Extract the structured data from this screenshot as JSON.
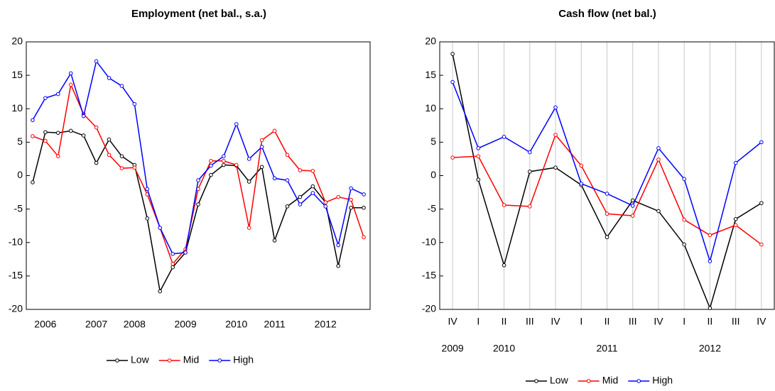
{
  "chart_data": [
    {
      "type": "line",
      "title": "Employment (net bal., s.a.)",
      "categories": [
        null,
        "2006",
        null,
        null,
        null,
        "2007",
        null,
        null,
        "2008",
        null,
        null,
        null,
        "2009",
        null,
        null,
        null,
        "2010",
        null,
        null,
        "2011",
        null,
        null,
        null,
        "2012",
        null,
        null,
        null
      ],
      "series": [
        {
          "name": "Low",
          "color": "#000000",
          "values": [
            -1,
            6.5,
            6.4,
            6.7,
            6,
            1.9,
            5.4,
            2.9,
            1.6,
            -6.4,
            -17.3,
            -13.7,
            -11.5,
            -4.3,
            0.1,
            1.6,
            1.5,
            -0.9,
            1.3,
            -9.7,
            -4.6,
            -3.2,
            -1.6,
            -4,
            -13.5,
            -4.8,
            -4.8
          ]
        },
        {
          "name": "Mid",
          "color": "#ff0000",
          "values": [
            5.9,
            5.2,
            2.9,
            13.6,
            9.2,
            7.2,
            3.1,
            1.1,
            1.2,
            -2.8,
            -7.8,
            -13.2,
            -11,
            -2,
            2.2,
            2.2,
            1.6,
            -7.8,
            5.3,
            6.7,
            3.1,
            0.8,
            0.7,
            -4,
            -3.2,
            -3.6,
            -9.2
          ]
        },
        {
          "name": "High",
          "color": "#0000ff",
          "values": [
            8.3,
            11.6,
            12.2,
            15.3,
            8.9,
            17.1,
            14.6,
            13.4,
            10.7,
            -2,
            -7.8,
            -11.7,
            -11.5,
            -0.7,
            1.5,
            2.9,
            7.7,
            2.5,
            4.3,
            -0.4,
            -0.7,
            -4.3,
            -2.6,
            -4.6,
            -10.4,
            -1.9,
            -2.8
          ]
        }
      ],
      "ylim": [
        -20,
        20
      ],
      "yticks": [
        -20,
        -15,
        -10,
        -5,
        0,
        5,
        10,
        15,
        20
      ],
      "grid": false,
      "legend": "bottom"
    },
    {
      "type": "line",
      "title": "Cash flow (net bal.)",
      "categories": [
        "IV",
        "I",
        "II",
        "III",
        "IV",
        "I",
        "II",
        "III",
        "IV",
        "I",
        "II",
        "III",
        "IV"
      ],
      "x_group_labels": [
        "2009",
        null,
        "2010",
        null,
        null,
        null,
        "2011",
        null,
        null,
        null,
        "2012",
        null,
        null
      ],
      "series": [
        {
          "name": "Low",
          "color": "#000000",
          "values": [
            18.2,
            -0.6,
            -13.4,
            0.6,
            1.2,
            -1.4,
            -9.2,
            -3.7,
            -5.3,
            -10.3,
            -19.8,
            -6.5,
            -4.1
          ]
        },
        {
          "name": "Mid",
          "color": "#ff0000",
          "values": [
            2.7,
            2.9,
            -4.4,
            -4.6,
            6.1,
            1.5,
            -5.7,
            -6.0,
            2.4,
            -6.6,
            -8.9,
            -7.4,
            -10.3
          ]
        },
        {
          "name": "High",
          "color": "#0000ff",
          "values": [
            14.0,
            4.1,
            5.8,
            3.5,
            10.2,
            -1.2,
            -2.7,
            -4.5,
            4.1,
            -0.5,
            -12.8,
            1.9,
            5.0
          ]
        }
      ],
      "ylim": [
        -20,
        20
      ],
      "yticks": [
        -20,
        -15,
        -10,
        -5,
        0,
        5,
        10,
        15,
        20
      ],
      "grid": true,
      "legend": "bottom"
    }
  ]
}
